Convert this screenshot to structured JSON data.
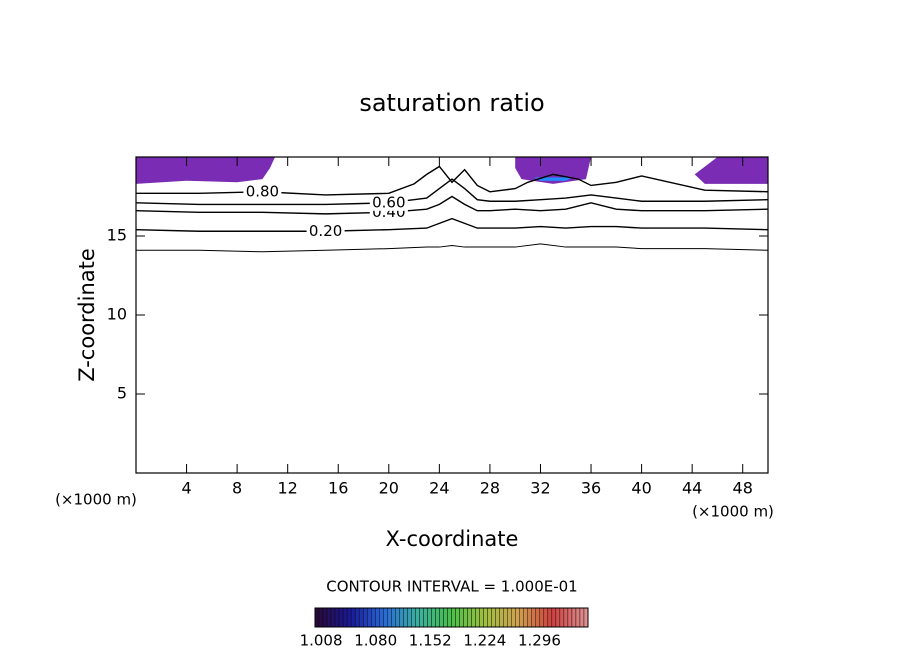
{
  "chart_data": {
    "type": "contour",
    "title": "saturation ratio",
    "x_label": "X-coordinate",
    "y_label": "Z-coordinate",
    "x_unit": "(×1000 m)",
    "y_unit": "(×1000 m)",
    "xlim": [
      0,
      50
    ],
    "ylim": [
      0,
      20
    ],
    "xticks": [
      4,
      8,
      12,
      16,
      20,
      24,
      28,
      32,
      36,
      40,
      44,
      48
    ],
    "yticks": [
      5,
      10,
      15
    ],
    "line_color": "#000000",
    "contours": [
      {
        "level": 0.1,
        "x": [
          0,
          5,
          10,
          15,
          20,
          23,
          24,
          25,
          26,
          27,
          28,
          30,
          32,
          34,
          36,
          38,
          40,
          45,
          50
        ],
        "y": [
          14.1,
          14.1,
          14.0,
          14.1,
          14.2,
          14.3,
          14.3,
          14.4,
          14.3,
          14.3,
          14.3,
          14.3,
          14.5,
          14.3,
          14.3,
          14.3,
          14.2,
          14.2,
          14.1
        ]
      },
      {
        "level": 0.2,
        "label": "0.20",
        "x": [
          0,
          5,
          10,
          15,
          20,
          23,
          24,
          25,
          26,
          27,
          28,
          30,
          32,
          34,
          36,
          38,
          40,
          45,
          50
        ],
        "y": [
          15.4,
          15.3,
          15.3,
          15.3,
          15.4,
          15.5,
          15.8,
          16.1,
          15.8,
          15.5,
          15.5,
          15.5,
          15.6,
          15.5,
          15.6,
          15.6,
          15.5,
          15.5,
          15.4
        ]
      },
      {
        "level": 0.4,
        "label": "0.40",
        "x": [
          0,
          5,
          10,
          15,
          20,
          23,
          24,
          25,
          26,
          27,
          28,
          30,
          32,
          34,
          36,
          38,
          40,
          45,
          50
        ],
        "y": [
          16.6,
          16.5,
          16.5,
          16.4,
          16.5,
          16.7,
          17.0,
          17.5,
          17.0,
          16.6,
          16.6,
          16.7,
          16.6,
          16.7,
          17.1,
          16.7,
          16.6,
          16.6,
          16.7
        ]
      },
      {
        "level": 0.6,
        "label": "0.60",
        "x": [
          0,
          5,
          10,
          15,
          20,
          23,
          24,
          25,
          26,
          27,
          28,
          30,
          32,
          34,
          36,
          38,
          40,
          45,
          50
        ],
        "y": [
          17.1,
          17.0,
          17.0,
          17.0,
          17.1,
          17.4,
          18.0,
          18.6,
          18.0,
          17.3,
          17.2,
          17.2,
          17.3,
          17.4,
          17.6,
          17.4,
          17.2,
          17.2,
          17.3
        ]
      },
      {
        "level": 0.8,
        "label": "0.80",
        "x": [
          0,
          5,
          10,
          15,
          20,
          22,
          23,
          24,
          25,
          26,
          27,
          28,
          30,
          31,
          33,
          35,
          36,
          38,
          40,
          45,
          50
        ],
        "y": [
          17.7,
          17.7,
          17.8,
          17.6,
          17.7,
          18.3,
          18.9,
          19.4,
          18.4,
          19.2,
          18.2,
          17.8,
          18.0,
          18.4,
          18.9,
          18.6,
          18.2,
          18.4,
          18.8,
          17.9,
          17.8
        ]
      }
    ],
    "fill_regions": [
      {
        "color": "#7a2db4",
        "x": [
          0,
          11,
          10.6,
          10,
          8,
          4,
          0
        ],
        "y": [
          20,
          20,
          19.3,
          18.6,
          18.4,
          18.5,
          18.3
        ]
      },
      {
        "color": "#7a2db4",
        "x": [
          30,
          36,
          35.6,
          33,
          30.5,
          30
        ],
        "y": [
          20,
          20,
          18.6,
          18.3,
          18.6,
          19.3
        ]
      },
      {
        "color": "#1e90ff",
        "x": [
          31.5,
          34.5,
          34,
          32
        ],
        "y": [
          18.7,
          18.7,
          18.5,
          18.5
        ]
      },
      {
        "color": "#7a2db4",
        "x": [
          46,
          50,
          50,
          45,
          44.2
        ],
        "y": [
          20,
          20,
          18.3,
          18.3,
          18.9
        ]
      }
    ],
    "contour_interval_text": "CONTOUR INTERVAL = 1.000E-01",
    "colorbar": {
      "lim": [
        1.0,
        1.36
      ],
      "colors": [
        "#2a0a3a",
        "#1a1a9a",
        "#2a6ad8",
        "#3ab0a0",
        "#4ac04a",
        "#a0c040",
        "#d0a050",
        "#d04040",
        "#e09090"
      ],
      "ticks": [
        1.008,
        {
          "value": 1.08,
          "label": "1.080"
        },
        1.152,
        1.224,
        1.296
      ]
    }
  }
}
